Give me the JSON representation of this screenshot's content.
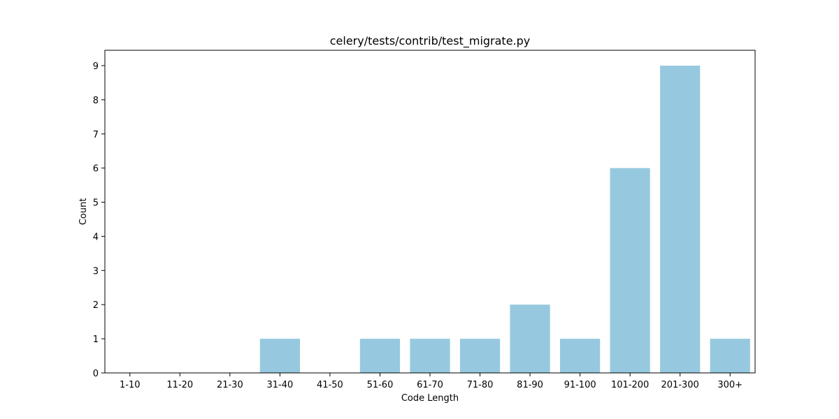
{
  "chart_data": {
    "type": "bar",
    "title": "celery/tests/contrib/test_migrate.py",
    "xlabel": "Code Length",
    "ylabel": "Count",
    "categories": [
      "1-10",
      "11-20",
      "21-30",
      "31-40",
      "41-50",
      "51-60",
      "61-70",
      "71-80",
      "81-90",
      "91-100",
      "101-200",
      "201-300",
      "300+"
    ],
    "values": [
      0,
      0,
      0,
      1,
      0,
      1,
      1,
      1,
      2,
      1,
      6,
      9,
      1
    ],
    "ylim": [
      0,
      9.45
    ],
    "yticks": [
      0,
      1,
      2,
      3,
      4,
      5,
      6,
      7,
      8,
      9
    ],
    "bar_color": "#96c9df",
    "grid": false,
    "legend": "none"
  }
}
